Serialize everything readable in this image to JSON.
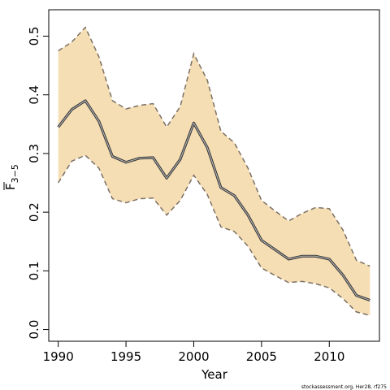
{
  "chart_data": {
    "type": "area",
    "xlabel": "Year",
    "ylabel": "F",
    "ylabel_subscript": "3−5",
    "xlim": [
      1989.3,
      2013.7
    ],
    "ylim": [
      -0.02,
      0.545
    ],
    "x_ticks": [
      1990,
      1995,
      2000,
      2005,
      2010
    ],
    "x_tick_labels": [
      "1990",
      "1995",
      "2000",
      "2005",
      "2010"
    ],
    "y_ticks": [
      0.0,
      0.1,
      0.2,
      0.3,
      0.4,
      0.5
    ],
    "y_tick_labels": [
      "0.0",
      "0.1",
      "0.2",
      "0.3",
      "0.4",
      "0.5"
    ],
    "grid": false,
    "legend": "none",
    "x": [
      1990,
      1991,
      1992,
      1993,
      1994,
      1995,
      1996,
      1997,
      1998,
      1999,
      2000,
      2001,
      2002,
      2003,
      2004,
      2005,
      2006,
      2007,
      2008,
      2009,
      2010,
      2011,
      2012,
      2013
    ],
    "series": [
      {
        "role": "estimate",
        "values": [
          0.345,
          0.375,
          0.39,
          0.355,
          0.295,
          0.285,
          0.292,
          0.293,
          0.258,
          0.29,
          0.352,
          0.31,
          0.242,
          0.228,
          0.195,
          0.152,
          0.136,
          0.12,
          0.125,
          0.125,
          0.12,
          0.093,
          0.058,
          0.05
        ]
      },
      {
        "role": "upper",
        "values": [
          0.475,
          0.49,
          0.515,
          0.465,
          0.39,
          0.376,
          0.382,
          0.385,
          0.345,
          0.38,
          0.47,
          0.425,
          0.338,
          0.318,
          0.275,
          0.22,
          0.202,
          0.185,
          0.198,
          0.208,
          0.206,
          0.17,
          0.118,
          0.108
        ]
      },
      {
        "role": "lower",
        "values": [
          0.25,
          0.287,
          0.297,
          0.275,
          0.223,
          0.216,
          0.223,
          0.224,
          0.195,
          0.22,
          0.263,
          0.23,
          0.175,
          0.167,
          0.142,
          0.105,
          0.092,
          0.08,
          0.082,
          0.078,
          0.071,
          0.053,
          0.03,
          0.024
        ]
      }
    ],
    "colors": {
      "band_fill": "#f6deb4",
      "band_edge": "#7a7064",
      "line_outer": "#3a3a3a",
      "line_inner": "#bdbdbd"
    }
  },
  "footer": "stockassessment.org, Her28, rf275"
}
